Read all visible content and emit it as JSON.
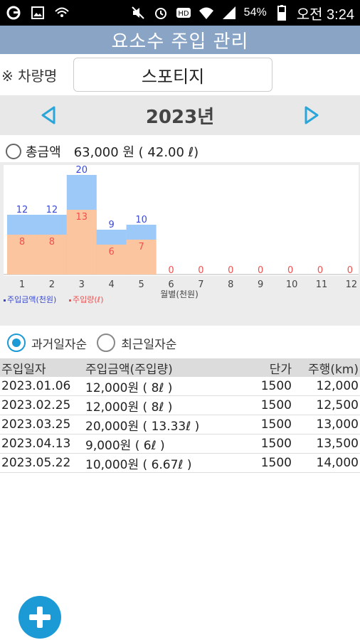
{
  "status_bar": {
    "battery": "54%",
    "time": "오전 3:24",
    "icons": [
      "g-icon",
      "image-icon",
      "wifi-giga-icon",
      "mute-icon",
      "alarm-icon",
      "hd-icon",
      "wifi-icon",
      "signal-icon",
      "battery-icon"
    ]
  },
  "header": {
    "title": "요소수 주입 관리"
  },
  "vehicle": {
    "label": "※ 차량명",
    "value": "스포티지"
  },
  "year_nav": {
    "year": "2023년",
    "prev_icon": "triangle-left-icon",
    "next_icon": "triangle-right-icon"
  },
  "total": {
    "label": "총금액",
    "value": "63,000 원 ( 42.00 ℓ)"
  },
  "chart_data": {
    "type": "bar",
    "categories": [
      "1",
      "2",
      "3",
      "4",
      "5",
      "6",
      "7",
      "8",
      "9",
      "10",
      "11",
      "12"
    ],
    "series": [
      {
        "name": "주입금액(천원)",
        "values": [
          12,
          12,
          20,
          9,
          10,
          0,
          0,
          0,
          0,
          0,
          0,
          0
        ],
        "color": "#9cc9f7",
        "label_color": "#3a4ad0"
      },
      {
        "name": "주입량(ℓ)",
        "values": [
          8,
          8,
          13,
          6,
          7,
          0,
          0,
          0,
          0,
          0,
          0,
          0
        ],
        "color": "#fbc59f",
        "label_color": "#f05050"
      }
    ],
    "xlabel": "월별(천원)",
    "ylim": [
      0,
      20
    ],
    "legend": "bottom-left"
  },
  "sort": {
    "option1": "과거일자순",
    "option2": "최근일자순",
    "selected": "option1"
  },
  "table": {
    "headers": [
      "주입일자",
      "주입금액(주입량)",
      "단가",
      "주행(km)"
    ],
    "rows": [
      [
        "2023.01.06",
        "12,000원 ( 8ℓ )",
        "1500",
        "12,000"
      ],
      [
        "2023.02.25",
        "12,000원 ( 8ℓ )",
        "1500",
        "12,500"
      ],
      [
        "2023.03.25",
        "20,000원 ( 13.33ℓ )",
        "1500",
        "13,000"
      ],
      [
        "2023.04.13",
        "9,000원 ( 6ℓ )",
        "1500",
        "13,500"
      ],
      [
        "2023.05.22",
        "10,000원 ( 6.67ℓ )",
        "1500",
        "14,000"
      ]
    ]
  },
  "fab": {
    "icon": "plus-icon"
  }
}
